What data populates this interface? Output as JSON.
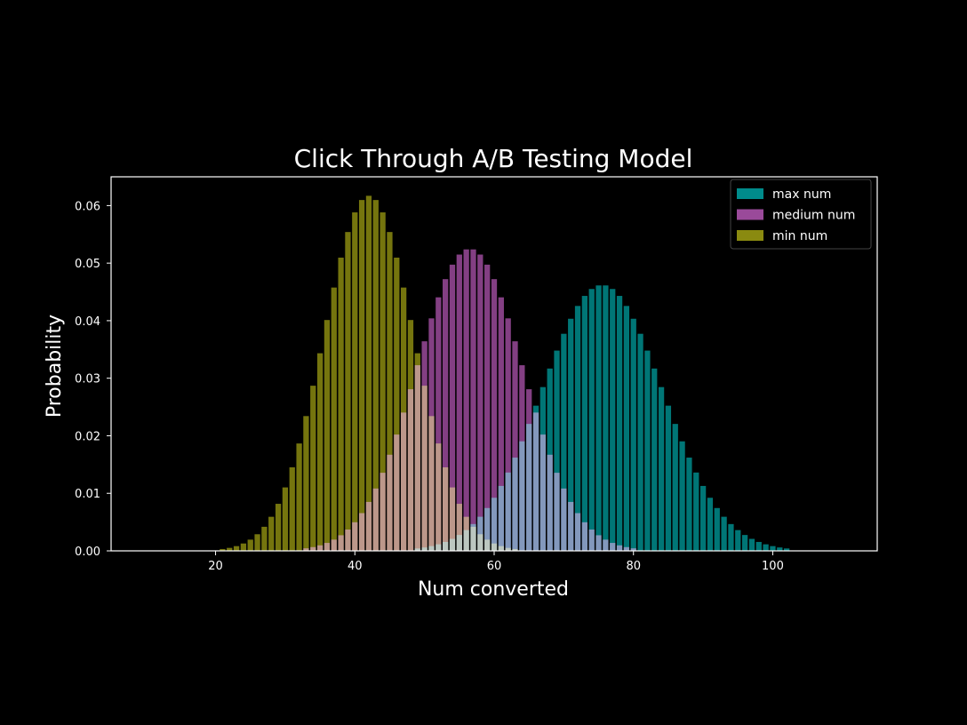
{
  "chart_data": {
    "type": "bar",
    "title": "Click Through A/B Testing Model",
    "xlabel": "Num converted",
    "ylabel": "Probability",
    "xlim": [
      5,
      115
    ],
    "ylim": [
      0,
      0.065
    ],
    "xticks": [
      20,
      40,
      60,
      80,
      100
    ],
    "yticks": [
      0.0,
      0.01,
      0.02,
      0.03,
      0.04,
      0.05,
      0.06
    ],
    "grid": false,
    "legend_position": "top-right",
    "background": "#000000",
    "series": [
      {
        "name": "max num",
        "color": "#008b8b",
        "distribution": "normal",
        "mean": 75.5,
        "peak": 0.0462,
        "x_range": [
          48,
          108
        ]
      },
      {
        "name": "medium num",
        "color": "#9a4a9a",
        "distribution": "normal",
        "mean": 56.5,
        "peak": 0.0525,
        "x_range": [
          30,
          84
        ]
      },
      {
        "name": "min num",
        "color": "#8a8a10",
        "distribution": "normal",
        "mean": 42,
        "peak": 0.0617,
        "x_range": [
          20,
          66
        ]
      }
    ]
  }
}
